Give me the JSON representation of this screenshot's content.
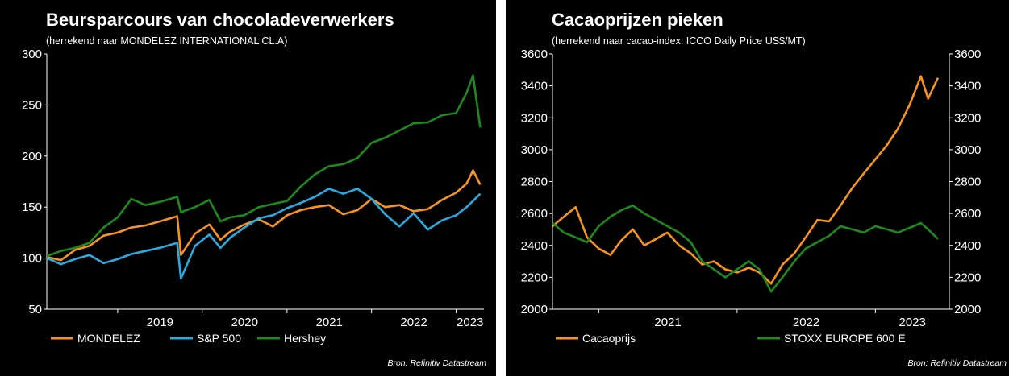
{
  "chart_data": [
    {
      "type": "line",
      "title": "Beursparcours van chocoladeverwerkers",
      "subtitle": "(herrekend naar MONDELEZ INTERNATIONAL CL.A)",
      "ylim": [
        50,
        300
      ],
      "yticks": [
        50,
        100,
        150,
        200,
        250,
        300
      ],
      "xlim": [
        "2018-03-01",
        "2023-05-01"
      ],
      "xtick_labels": [
        "2019",
        "2020",
        "2021",
        "2022",
        "2023"
      ],
      "grid": false,
      "legend_position": "bottom",
      "source": "Bron: Refinitiv Datastream",
      "series": [
        {
          "name": "MONDELEZ",
          "color": "#f7941d",
          "x": [
            "2018-03-01",
            "2018-05-01",
            "2018-07-01",
            "2018-09-01",
            "2018-11-01",
            "2019-01-01",
            "2019-03-01",
            "2019-05-01",
            "2019-07-01",
            "2019-09-15",
            "2019-10-01",
            "2019-12-01",
            "2020-02-01",
            "2020-03-20",
            "2020-05-01",
            "2020-07-01",
            "2020-09-01",
            "2020-11-01",
            "2021-01-01",
            "2021-03-01",
            "2021-05-01",
            "2021-07-01",
            "2021-09-01",
            "2021-11-01",
            "2022-01-01",
            "2022-03-01",
            "2022-05-01",
            "2022-07-01",
            "2022-09-01",
            "2022-11-01",
            "2023-01-01",
            "2023-02-15",
            "2023-03-15",
            "2023-04-15"
          ],
          "values": [
            101,
            98,
            108,
            112,
            122,
            125,
            130,
            132,
            136,
            141,
            103,
            124,
            133,
            118,
            126,
            133,
            138,
            131,
            142,
            147,
            150,
            152,
            143,
            147,
            158,
            150,
            152,
            146,
            148,
            157,
            164,
            173,
            186,
            172
          ]
        },
        {
          "name": "S&P 500",
          "color": "#29abe2",
          "x": [
            "2018-03-01",
            "2018-05-01",
            "2018-07-01",
            "2018-09-01",
            "2018-11-01",
            "2019-01-01",
            "2019-03-01",
            "2019-05-01",
            "2019-07-01",
            "2019-09-15",
            "2019-10-01",
            "2019-12-01",
            "2020-02-01",
            "2020-03-20",
            "2020-05-01",
            "2020-07-01",
            "2020-09-01",
            "2020-11-01",
            "2021-01-01",
            "2021-03-01",
            "2021-05-01",
            "2021-07-01",
            "2021-09-01",
            "2021-11-01",
            "2022-01-01",
            "2022-03-01",
            "2022-05-01",
            "2022-07-01",
            "2022-09-01",
            "2022-11-01",
            "2023-01-01",
            "2023-02-15",
            "2023-03-15",
            "2023-04-15"
          ],
          "values": [
            100,
            94,
            99,
            103,
            95,
            99,
            104,
            107,
            110,
            115,
            80,
            112,
            123,
            110,
            120,
            130,
            139,
            142,
            149,
            154,
            160,
            168,
            163,
            168,
            158,
            143,
            131,
            144,
            128,
            137,
            142,
            150,
            156,
            163
          ]
        },
        {
          "name": "Hershey",
          "color": "#1e8a1e",
          "x": [
            "2018-03-01",
            "2018-05-01",
            "2018-07-01",
            "2018-09-01",
            "2018-11-01",
            "2019-01-01",
            "2019-03-01",
            "2019-05-01",
            "2019-07-01",
            "2019-09-15",
            "2019-10-01",
            "2019-12-01",
            "2020-02-01",
            "2020-03-20",
            "2020-05-01",
            "2020-07-01",
            "2020-09-01",
            "2020-11-01",
            "2021-01-01",
            "2021-03-01",
            "2021-05-01",
            "2021-07-01",
            "2021-09-01",
            "2021-11-01",
            "2022-01-01",
            "2022-03-01",
            "2022-05-01",
            "2022-07-01",
            "2022-09-01",
            "2022-11-01",
            "2023-01-01",
            "2023-02-15",
            "2023-03-15",
            "2023-04-15"
          ],
          "values": [
            102,
            107,
            110,
            115,
            130,
            140,
            158,
            152,
            155,
            160,
            145,
            150,
            157,
            136,
            140,
            142,
            150,
            153,
            156,
            170,
            182,
            190,
            192,
            198,
            213,
            218,
            225,
            232,
            233,
            240,
            242,
            262,
            279,
            228
          ]
        }
      ]
    },
    {
      "type": "line",
      "title": "Cacaoprijzen pieken",
      "subtitle": "(herrekend naar cacao-index:  ICCO Daily Price US$/MT)",
      "ylim": [
        2000,
        3600
      ],
      "yticks": [
        2000,
        2200,
        2400,
        2600,
        2800,
        3000,
        3200,
        3400,
        3600
      ],
      "xlim": [
        "2020-09-01",
        "2023-07-15"
      ],
      "xtick_labels": [
        "2021",
        "2022",
        "2023"
      ],
      "grid": false,
      "legend_position": "bottom",
      "source": "Bron: Refinitiv Datastream",
      "series": [
        {
          "name": "Cacaoprijs",
          "color": "#f7941d",
          "x": [
            "2020-09-01",
            "2020-10-01",
            "2020-11-01",
            "2020-12-01",
            "2021-01-01",
            "2021-02-01",
            "2021-03-01",
            "2021-04-01",
            "2021-05-01",
            "2021-06-01",
            "2021-07-01",
            "2021-08-01",
            "2021-09-01",
            "2021-10-01",
            "2021-11-01",
            "2021-12-01",
            "2022-01-01",
            "2022-02-01",
            "2022-03-01",
            "2022-04-01",
            "2022-05-01",
            "2022-06-01",
            "2022-07-01",
            "2022-08-01",
            "2022-09-01",
            "2022-10-01",
            "2022-11-01",
            "2022-12-01",
            "2023-01-01",
            "2023-02-01",
            "2023-03-01",
            "2023-04-01",
            "2023-05-01",
            "2023-05-20",
            "2023-06-15"
          ],
          "values": [
            2520,
            2580,
            2640,
            2450,
            2380,
            2340,
            2430,
            2500,
            2400,
            2440,
            2480,
            2400,
            2350,
            2280,
            2300,
            2250,
            2230,
            2260,
            2230,
            2160,
            2280,
            2350,
            2450,
            2560,
            2550,
            2650,
            2760,
            2850,
            2940,
            3030,
            3130,
            3280,
            3460,
            3320,
            3450
          ]
        },
        {
          "name": "STOXX EUROPE 600 E",
          "color": "#1e8a1e",
          "x": [
            "2020-09-01",
            "2020-10-01",
            "2020-11-01",
            "2020-12-01",
            "2021-01-01",
            "2021-02-01",
            "2021-03-01",
            "2021-04-01",
            "2021-05-01",
            "2021-06-01",
            "2021-07-01",
            "2021-08-01",
            "2021-09-01",
            "2021-10-01",
            "2021-11-01",
            "2021-12-01",
            "2022-01-01",
            "2022-02-01",
            "2022-03-01",
            "2022-04-01",
            "2022-05-01",
            "2022-06-01",
            "2022-07-01",
            "2022-08-01",
            "2022-09-01",
            "2022-10-01",
            "2022-11-01",
            "2022-12-01",
            "2023-01-01",
            "2023-02-01",
            "2023-03-01",
            "2023-04-01",
            "2023-05-01",
            "2023-05-20",
            "2023-06-15"
          ],
          "values": [
            2540,
            2480,
            2450,
            2420,
            2520,
            2580,
            2620,
            2650,
            2600,
            2560,
            2520,
            2480,
            2420,
            2300,
            2250,
            2200,
            2250,
            2300,
            2250,
            2110,
            2200,
            2300,
            2380,
            2420,
            2460,
            2520,
            2500,
            2480,
            2520,
            2500,
            2480,
            2510,
            2540,
            2500,
            2440
          ]
        }
      ]
    }
  ]
}
